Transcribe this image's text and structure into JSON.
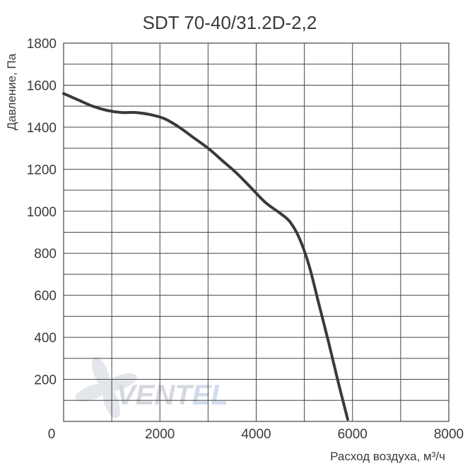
{
  "chart_data": {
    "type": "line",
    "title": "SDT 70-40/31.2D-2,2",
    "xlabel": "Расход воздуха, м³/ч",
    "ylabel": "Давление, Па",
    "xlim": [
      0,
      8000
    ],
    "ylim": [
      0,
      1800
    ],
    "x_ticks": [
      "0",
      "2000",
      "4000",
      "6000",
      "8000"
    ],
    "y_ticks": [
      "200",
      "400",
      "600",
      "800",
      "1000",
      "1200",
      "1400",
      "1600",
      "1800"
    ],
    "grid": true,
    "series": [
      {
        "x": [
          0,
          300,
          600,
          900,
          1200,
          1500,
          1800,
          2100,
          2400,
          2700,
          3000,
          3300,
          3600,
          3900,
          4200,
          4500,
          4700,
          4900,
          5100,
          5300,
          5500,
          5700,
          5900
        ],
        "y": [
          1560,
          1530,
          1500,
          1480,
          1470,
          1470,
          1460,
          1440,
          1400,
          1350,
          1300,
          1240,
          1180,
          1110,
          1040,
          990,
          950,
          870,
          740,
          560,
          380,
          190,
          10
        ],
        "color": "#3a3a3a"
      }
    ],
    "watermark": "VENTEL"
  }
}
